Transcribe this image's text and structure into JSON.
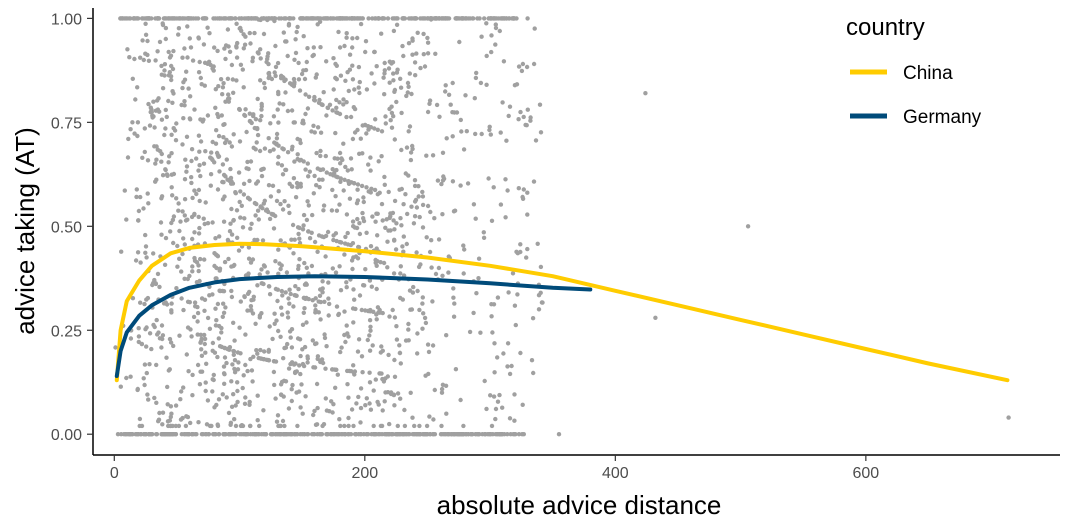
{
  "chart_data": {
    "type": "scatter",
    "title": "",
    "xlabel": "absolute advice distance",
    "ylabel": "advice taking (AT)",
    "xlim": [
      -17,
      755
    ],
    "ylim": [
      -0.05,
      1.025
    ],
    "x_ticks": [
      0,
      200,
      400,
      600
    ],
    "x_tick_labels": [
      "0",
      "200",
      "400",
      "600"
    ],
    "y_ticks": [
      0,
      0.25,
      0.5,
      0.75,
      1
    ],
    "y_tick_labels": [
      "0.00",
      "0.25",
      "0.50",
      "0.75",
      "1.00"
    ],
    "grid": false,
    "legend": {
      "title": "country",
      "position": "top-right",
      "entries": [
        {
          "label": "China",
          "color": "#FFCC00"
        },
        {
          "label": "Germany",
          "color": "#004B7A"
        }
      ]
    },
    "points_color": "#A0A0A0",
    "series": [
      {
        "name": "China",
        "kind": "smooth-line",
        "color": "#FFCC00",
        "x": [
          2,
          5,
          10,
          20,
          30,
          45,
          60,
          80,
          100,
          120,
          150,
          200,
          250,
          300,
          350,
          400,
          450,
          500,
          550,
          600,
          650,
          713
        ],
        "y": [
          0.13,
          0.25,
          0.32,
          0.37,
          0.405,
          0.435,
          0.448,
          0.455,
          0.458,
          0.457,
          0.452,
          0.44,
          0.425,
          0.405,
          0.38,
          0.345,
          0.31,
          0.275,
          0.24,
          0.205,
          0.17,
          0.13
        ]
      },
      {
        "name": "Germany",
        "kind": "smooth-line",
        "color": "#004B7A",
        "x": [
          2,
          5,
          10,
          20,
          30,
          45,
          60,
          80,
          100,
          130,
          160,
          200,
          250,
          300,
          350,
          380
        ],
        "y": [
          0.14,
          0.2,
          0.245,
          0.285,
          0.31,
          0.335,
          0.352,
          0.365,
          0.373,
          0.378,
          0.38,
          0.378,
          0.372,
          0.363,
          0.352,
          0.348
        ]
      }
    ],
    "scatter_summary": {
      "x_range": [
        0,
        715
      ],
      "y_range": [
        0,
        1
      ],
      "bulk_x_range": [
        0,
        330
      ],
      "outliers": [
        [
          424,
          0.82
        ],
        [
          506,
          0.5
        ],
        [
          714,
          0.04
        ],
        [
          355,
          0.0
        ],
        [
          432,
          0.28
        ]
      ]
    }
  }
}
